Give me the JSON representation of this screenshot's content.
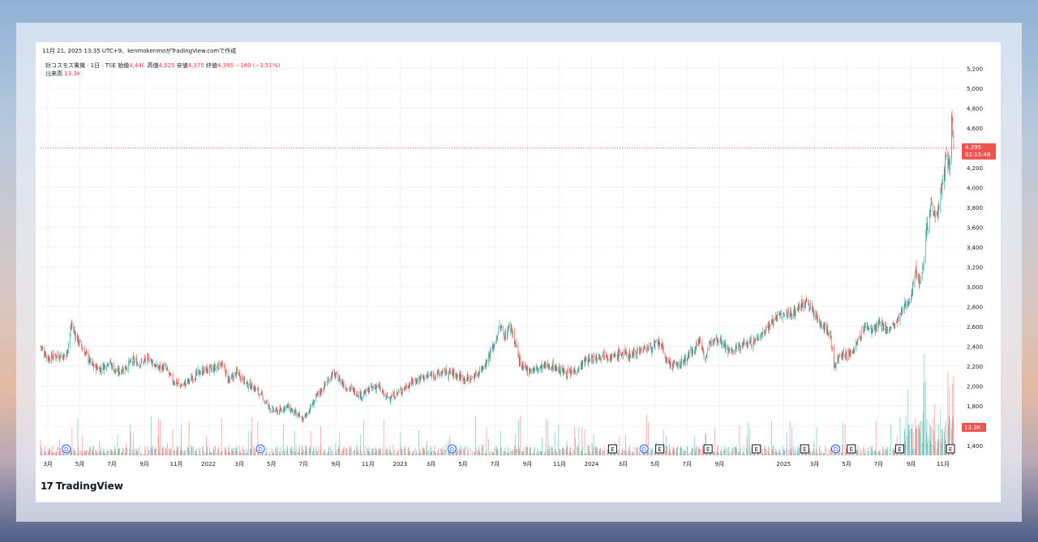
{
  "header": {
    "meta_line": "11月 21, 2025 13:35 UTC+9、kenmokenmoがTradingView.comで作成"
  },
  "legend": {
    "symbol": "新コスモス電機 · 1日 · TSE",
    "open_label": "始値",
    "open_value": "4,440",
    "high_label": "高値",
    "high_value": "4,525",
    "low_label": "安値",
    "low_value": "4,375",
    "close_label": "終値",
    "close_value": "4,395",
    "change": "−160 (−3.51%)",
    "volume_label": "出来高",
    "volume_value": "13.3K"
  },
  "price_badge": {
    "price": "4,395",
    "countdown": "02:15:48"
  },
  "volume_badge": "13.3K",
  "brand": {
    "logo": "17",
    "name": "TradingView"
  },
  "colors": {
    "up": "#26a69a",
    "down": "#ef5350",
    "grid": "#f0f3fa",
    "axis_text": "#131722",
    "price_line": "#f23645"
  },
  "chart_data": {
    "type": "candlestick",
    "title": "新コスモス電機 · 1日 · TSE",
    "y_ticks": [
      1400,
      1600,
      1800,
      2000,
      2200,
      2400,
      2600,
      2800,
      3000,
      3200,
      3400,
      3600,
      3800,
      4000,
      4200,
      4400,
      4600,
      4800,
      5000,
      5200
    ],
    "y_tick_labels": [
      "1,400",
      "1,600",
      "1,800",
      "2,000",
      "2,200",
      "2,400",
      "2,600",
      "2,800",
      "3,000",
      "3,200",
      "3,400",
      "3,600",
      "3,800",
      "4,000",
      "4,200",
      "4,400",
      "4,600",
      "4,800",
      "5,000",
      "5,200"
    ],
    "ylim": [
      1300,
      5300
    ],
    "x_ticks": [
      {
        "label": "3月",
        "date": "2021-03"
      },
      {
        "label": "5月",
        "date": "2021-05"
      },
      {
        "label": "7月",
        "date": "2021-07"
      },
      {
        "label": "9月",
        "date": "2021-09"
      },
      {
        "label": "11月",
        "date": "2021-11"
      },
      {
        "label": "2022",
        "date": "2022-01"
      },
      {
        "label": "3月",
        "date": "2022-03"
      },
      {
        "label": "5月",
        "date": "2022-05"
      },
      {
        "label": "7月",
        "date": "2022-07"
      },
      {
        "label": "9月",
        "date": "2022-09"
      },
      {
        "label": "11月",
        "date": "2022-11"
      },
      {
        "label": "2023",
        "date": "2023-01"
      },
      {
        "label": "3月",
        "date": "2023-03"
      },
      {
        "label": "5月",
        "date": "2023-05"
      },
      {
        "label": "7月",
        "date": "2023-07"
      },
      {
        "label": "9月",
        "date": "2023-09"
      },
      {
        "label": "11月",
        "date": "2023-11"
      },
      {
        "label": "2024",
        "date": "2024-01"
      },
      {
        "label": "3月",
        "date": "2024-03"
      },
      {
        "label": "5月",
        "date": "2024-05"
      },
      {
        "label": "7月",
        "date": "2024-07"
      },
      {
        "label": "9月",
        "date": "2024-09"
      },
      {
        "label": "2025",
        "date": "2025-01"
      },
      {
        "label": "3月",
        "date": "2025-03"
      },
      {
        "label": "5月",
        "date": "2025-05"
      },
      {
        "label": "7月",
        "date": "2025-07"
      },
      {
        "label": "9月",
        "date": "2025-09"
      },
      {
        "label": "11月",
        "date": "2025-11"
      }
    ],
    "x_range": [
      "2021-02-15",
      "2025-11-21"
    ],
    "last_price": 4395,
    "price_path": [
      [
        "2021-02-15",
        2400
      ],
      [
        "2021-03-01",
        2280
      ],
      [
        "2021-03-20",
        2310
      ],
      [
        "2021-04-05",
        2300
      ],
      [
        "2021-04-15",
        2620
      ],
      [
        "2021-04-25",
        2480
      ],
      [
        "2021-05-10",
        2340
      ],
      [
        "2021-05-25",
        2200
      ],
      [
        "2021-06-10",
        2170
      ],
      [
        "2021-06-25",
        2250
      ],
      [
        "2021-07-10",
        2130
      ],
      [
        "2021-07-25",
        2180
      ],
      [
        "2021-08-10",
        2250
      ],
      [
        "2021-08-25",
        2230
      ],
      [
        "2021-09-10",
        2280
      ],
      [
        "2021-09-25",
        2180
      ],
      [
        "2021-10-10",
        2190
      ],
      [
        "2021-10-25",
        2050
      ],
      [
        "2021-11-10",
        2000
      ],
      [
        "2021-11-25",
        2050
      ],
      [
        "2021-12-10",
        2120
      ],
      [
        "2021-12-25",
        2160
      ],
      [
        "2022-01-10",
        2170
      ],
      [
        "2022-01-25",
        2230
      ],
      [
        "2022-02-10",
        2050
      ],
      [
        "2022-02-25",
        2140
      ],
      [
        "2022-03-15",
        2020
      ],
      [
        "2022-03-30",
        1980
      ],
      [
        "2022-04-15",
        1880
      ],
      [
        "2022-04-30",
        1760
      ],
      [
        "2022-05-15",
        1740
      ],
      [
        "2022-05-30",
        1800
      ],
      [
        "2022-06-15",
        1720
      ],
      [
        "2022-06-30",
        1660
      ],
      [
        "2022-07-10",
        1740
      ],
      [
        "2022-07-25",
        1880
      ],
      [
        "2022-08-10",
        2000
      ],
      [
        "2022-08-25",
        2120
      ],
      [
        "2022-09-05",
        2080
      ],
      [
        "2022-09-20",
        1990
      ],
      [
        "2022-10-05",
        1950
      ],
      [
        "2022-10-20",
        1900
      ],
      [
        "2022-11-05",
        1970
      ],
      [
        "2022-11-20",
        2000
      ],
      [
        "2022-12-05",
        1880
      ],
      [
        "2022-12-20",
        1900
      ],
      [
        "2023-01-10",
        1980
      ],
      [
        "2023-01-25",
        2040
      ],
      [
        "2023-02-10",
        2080
      ],
      [
        "2023-02-25",
        2100
      ],
      [
        "2023-03-15",
        2120
      ],
      [
        "2023-03-30",
        2140
      ],
      [
        "2023-04-15",
        2120
      ],
      [
        "2023-04-30",
        2080
      ],
      [
        "2023-05-15",
        2070
      ],
      [
        "2023-05-30",
        2130
      ],
      [
        "2023-06-15",
        2250
      ],
      [
        "2023-06-30",
        2420
      ],
      [
        "2023-07-10",
        2600
      ],
      [
        "2023-07-20",
        2500
      ],
      [
        "2023-07-30",
        2620
      ],
      [
        "2023-08-10",
        2400
      ],
      [
        "2023-08-20",
        2180
      ],
      [
        "2023-09-05",
        2160
      ],
      [
        "2023-09-20",
        2170
      ],
      [
        "2023-10-05",
        2200
      ],
      [
        "2023-10-20",
        2200
      ],
      [
        "2023-11-05",
        2150
      ],
      [
        "2023-11-20",
        2120
      ],
      [
        "2023-12-05",
        2170
      ],
      [
        "2023-12-20",
        2250
      ],
      [
        "2024-01-10",
        2290
      ],
      [
        "2024-01-25",
        2330
      ],
      [
        "2024-02-10",
        2280
      ],
      [
        "2024-02-25",
        2330
      ],
      [
        "2024-03-15",
        2310
      ],
      [
        "2024-03-30",
        2360
      ],
      [
        "2024-04-15",
        2380
      ],
      [
        "2024-04-30",
        2400
      ],
      [
        "2024-05-10",
        2430
      ],
      [
        "2024-05-25",
        2230
      ],
      [
        "2024-06-10",
        2200
      ],
      [
        "2024-06-25",
        2250
      ],
      [
        "2024-07-10",
        2350
      ],
      [
        "2024-07-25",
        2460
      ],
      [
        "2024-08-05",
        2280
      ],
      [
        "2024-08-20",
        2500
      ],
      [
        "2024-09-05",
        2460
      ],
      [
        "2024-09-20",
        2340
      ],
      [
        "2024-10-05",
        2380
      ],
      [
        "2024-10-20",
        2430
      ],
      [
        "2024-11-05",
        2440
      ],
      [
        "2024-11-20",
        2520
      ],
      [
        "2024-12-05",
        2620
      ],
      [
        "2024-12-20",
        2700
      ],
      [
        "2025-01-10",
        2720
      ],
      [
        "2025-01-25",
        2760
      ],
      [
        "2025-02-10",
        2850
      ],
      [
        "2025-02-20",
        2800
      ],
      [
        "2025-03-05",
        2680
      ],
      [
        "2025-03-20",
        2600
      ],
      [
        "2025-04-01",
        2480
      ],
      [
        "2025-04-07",
        2200
      ],
      [
        "2025-04-20",
        2330
      ],
      [
        "2025-05-05",
        2300
      ],
      [
        "2025-05-20",
        2420
      ],
      [
        "2025-06-05",
        2600
      ],
      [
        "2025-06-20",
        2560
      ],
      [
        "2025-07-05",
        2620
      ],
      [
        "2025-07-20",
        2560
      ],
      [
        "2025-08-05",
        2640
      ],
      [
        "2025-08-20",
        2800
      ],
      [
        "2025-09-01",
        2920
      ],
      [
        "2025-09-10",
        3150
      ],
      [
        "2025-09-20",
        3050
      ],
      [
        "2025-10-01",
        3600
      ],
      [
        "2025-10-10",
        3850
      ],
      [
        "2025-10-20",
        3700
      ],
      [
        "2025-10-30",
        4000
      ],
      [
        "2025-11-07",
        4300
      ],
      [
        "2025-11-13",
        4200
      ],
      [
        "2025-11-17",
        4700
      ],
      [
        "2025-11-19",
        4560
      ],
      [
        "2025-11-21",
        4395
      ]
    ],
    "event_markers": [
      {
        "type": "D",
        "date": "2021-04-05"
      },
      {
        "type": "D",
        "date": "2022-04-10"
      },
      {
        "type": "D",
        "date": "2023-04-10"
      },
      {
        "type": "E",
        "date": "2024-02-10"
      },
      {
        "type": "D",
        "date": "2024-04-10"
      },
      {
        "type": "E",
        "date": "2024-05-10"
      },
      {
        "type": "E",
        "date": "2024-08-10"
      },
      {
        "type": "E",
        "date": "2024-11-10"
      },
      {
        "type": "E",
        "date": "2025-02-10"
      },
      {
        "type": "D",
        "date": "2025-04-10"
      },
      {
        "type": "E",
        "date": "2025-05-10"
      },
      {
        "type": "E",
        "date": "2025-08-10"
      },
      {
        "type": "E",
        "date": "2025-11-15"
      }
    ],
    "volume": {
      "last": 13300,
      "note": "daily volume histogram, spikes in late 2025"
    },
    "grid": true
  }
}
